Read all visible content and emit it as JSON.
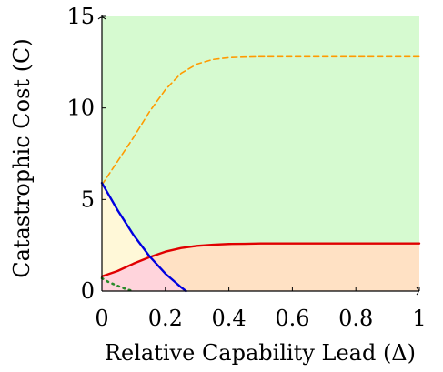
{
  "chart_data": {
    "type": "line",
    "xlabel": "Relative Capability Lead (Δ)",
    "ylabel": "Catastrophic Cost (C)",
    "xlim": [
      0,
      1
    ],
    "ylim": [
      0,
      15
    ],
    "x_ticks": [
      0,
      0.2,
      0.4,
      0.6,
      0.8,
      1
    ],
    "x_tick_labels": [
      "0",
      "0.2",
      "0.4",
      "0.6",
      "0.8",
      "1"
    ],
    "y_ticks": [
      0,
      5,
      10,
      15
    ],
    "y_tick_labels": [
      "0",
      "5",
      "10",
      "15"
    ],
    "grid": false,
    "regions": [
      {
        "color": "#d6fad0",
        "bound": "above_max_of_red_and_blue"
      },
      {
        "color": "#ffe1c4",
        "bound": "below_red_right_of_blue"
      },
      {
        "color": "#fff8d8",
        "bound": "between_red_and_blue"
      },
      {
        "color": "#ffd4dc",
        "bound": "below_red_and_blue"
      }
    ],
    "series": [
      {
        "style": "dashed",
        "color": "#ff9a00",
        "x": [
          0,
          0.05,
          0.1,
          0.15,
          0.2,
          0.25,
          0.3,
          0.35,
          0.4,
          0.45,
          0.5,
          0.6,
          0.7,
          0.8,
          0.9,
          1
        ],
        "y": [
          5.8,
          7.1,
          8.4,
          9.8,
          11.0,
          11.9,
          12.4,
          12.65,
          12.75,
          12.78,
          12.8,
          12.8,
          12.8,
          12.8,
          12.8,
          12.8
        ]
      },
      {
        "style": "solid",
        "color": "#e00000",
        "x": [
          0,
          0.05,
          0.1,
          0.15,
          0.2,
          0.25,
          0.3,
          0.35,
          0.4,
          0.45,
          0.5,
          0.6,
          0.7,
          0.8,
          0.9,
          1
        ],
        "y": [
          0.8,
          1.1,
          1.5,
          1.85,
          2.15,
          2.35,
          2.47,
          2.53,
          2.57,
          2.58,
          2.6,
          2.6,
          2.6,
          2.6,
          2.6,
          2.6
        ]
      },
      {
        "style": "solid",
        "color": "#0000e0",
        "x": [
          0,
          0.05,
          0.1,
          0.15,
          0.2,
          0.25,
          0.265
        ],
        "y": [
          5.9,
          4.4,
          3.05,
          1.9,
          0.95,
          0.2,
          0
        ]
      },
      {
        "style": "dotted",
        "color": "#2a8a2a",
        "x": [
          0,
          0.02,
          0.05,
          0.08,
          0.1
        ],
        "y": [
          0.7,
          0.5,
          0.28,
          0.08,
          0
        ]
      }
    ]
  }
}
